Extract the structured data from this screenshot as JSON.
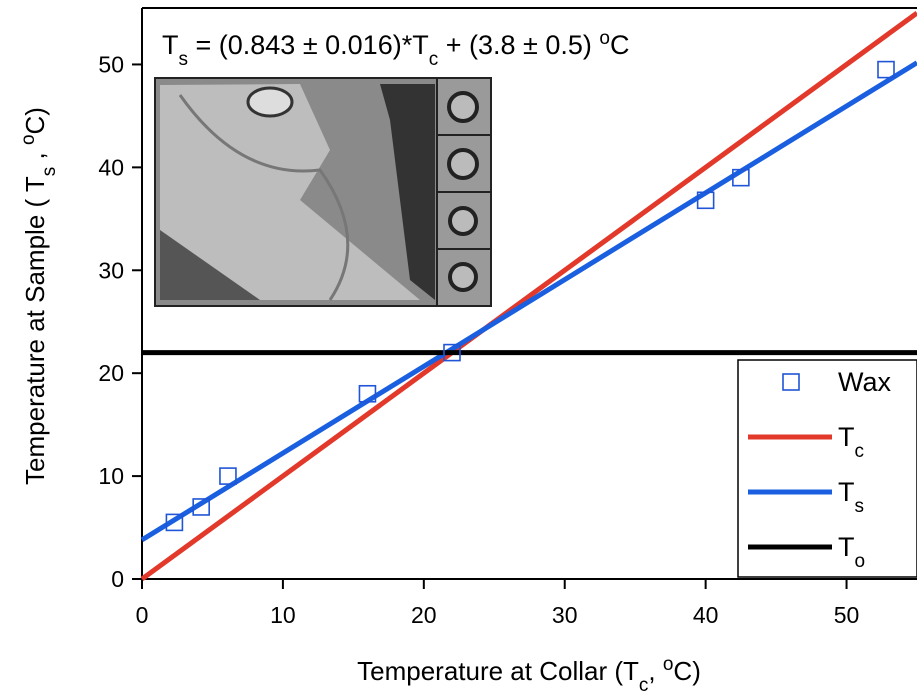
{
  "chart_data": {
    "type": "line",
    "annotation": [
      {
        "text": "T"
      },
      {
        "text": "s",
        "shift": "sub"
      },
      {
        "text": " = (0.843 ± 0.016)*T"
      },
      {
        "text": "c",
        "shift": "sub"
      },
      {
        "text": " + (3.8 ± 0.5) "
      },
      {
        "text": "o",
        "shift": "super"
      },
      {
        "text": "C"
      }
    ],
    "xlabel": [
      {
        "text": "Temperature at Collar (T"
      },
      {
        "text": "c",
        "shift": "sub"
      },
      {
        "text": ", "
      },
      {
        "text": "o",
        "shift": "super"
      },
      {
        "text": "C)"
      }
    ],
    "ylabel": [
      {
        "text": "Temperature at Sample ( T"
      },
      {
        "text": "s",
        "shift": "sub"
      },
      {
        "text": " , "
      },
      {
        "text": "o",
        "shift": "super"
      },
      {
        "text": "C)"
      }
    ],
    "xlim": [
      0,
      55
    ],
    "xticks": [
      0,
      10,
      20,
      30,
      40,
      50
    ],
    "ylim": [
      0,
      55
    ],
    "yticks": [
      0,
      10,
      20,
      30,
      40,
      50
    ],
    "legend": "lower right",
    "series": [
      {
        "name": [
          {
            "text": "Wax"
          }
        ],
        "kind": "scatter",
        "color": "#1f55d6",
        "x": [
          2.3,
          4.2,
          6.1,
          16,
          22,
          40,
          42.5,
          52.8
        ],
        "values": [
          5.5,
          7,
          10,
          18,
          22,
          36.8,
          39,
          49.5
        ]
      },
      {
        "name": [
          {
            "text": "T"
          },
          {
            "text": "c",
            "shift": "sub"
          }
        ],
        "kind": "line",
        "color": "#e2392b",
        "x": [
          0,
          55
        ],
        "values": [
          0,
          55
        ]
      },
      {
        "name": [
          {
            "text": "T"
          },
          {
            "text": "s",
            "shift": "sub"
          }
        ],
        "kind": "line",
        "color": "#1a5fe0",
        "x": [
          0,
          55
        ],
        "values": [
          3.8,
          50.17
        ]
      },
      {
        "name": [
          {
            "text": "T"
          },
          {
            "text": "o",
            "shift": "sub"
          }
        ],
        "kind": "line",
        "color": "#000000",
        "x": [
          0,
          55
        ],
        "values": [
          22,
          22
        ]
      }
    ]
  }
}
